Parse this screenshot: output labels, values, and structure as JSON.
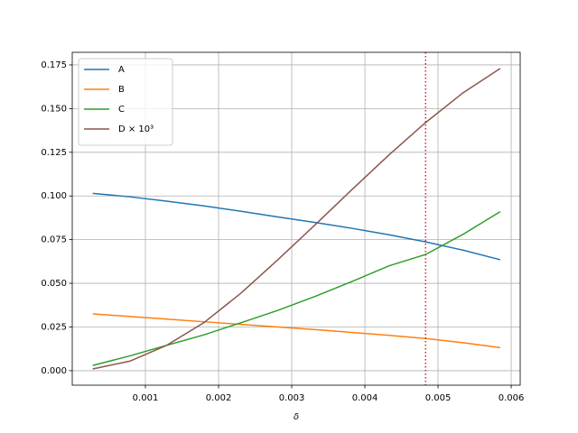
{
  "chart_data": {
    "type": "line",
    "xlabel": "δ",
    "x": [
      0.00028,
      0.00079,
      0.00129,
      0.0018,
      0.00231,
      0.00281,
      0.00332,
      0.00382,
      0.00433,
      0.00483,
      0.00534,
      0.00585
    ],
    "series": [
      {
        "name": "A",
        "color": "#1f77b4",
        "values": [
          0.1015,
          0.0995,
          0.097,
          0.0943,
          0.0912,
          0.088,
          0.0848,
          0.0815,
          0.0778,
          0.0737,
          0.069,
          0.0635
        ]
      },
      {
        "name": "B",
        "color": "#ff7f0e",
        "values": [
          0.0325,
          0.031,
          0.0295,
          0.028,
          0.0265,
          0.025,
          0.0235,
          0.0219,
          0.0202,
          0.0184,
          0.016,
          0.0132
        ]
      },
      {
        "name": "C",
        "color": "#2ca02c",
        "values": [
          0.003,
          0.0085,
          0.0145,
          0.0205,
          0.0275,
          0.0345,
          0.0425,
          0.051,
          0.06,
          0.0665,
          0.078,
          0.091
        ]
      },
      {
        "name": "D × 10³",
        "color": "#8c564b",
        "values": [
          0.001,
          0.0055,
          0.0145,
          0.0275,
          0.0445,
          0.0635,
          0.0835,
          0.1035,
          0.1235,
          0.142,
          0.159,
          0.173
        ]
      }
    ],
    "xlim": [
      0.0,
      0.006123
    ],
    "ylim": [
      -0.0083,
      0.1822
    ],
    "xticks": [
      0.001,
      0.002,
      0.003,
      0.004,
      0.005,
      0.006
    ],
    "yticks": [
      {
        "value": 0,
        "label": "0.000"
      },
      {
        "value": 0.025,
        "label": "0.025"
      },
      {
        "value": 0.05,
        "label": "0.050"
      },
      {
        "value": 0.075,
        "label": "0.075"
      },
      {
        "value": 0.1,
        "label": "0.100"
      },
      {
        "value": 0.125,
        "label": "0.125"
      },
      {
        "value": 0.15,
        "label": "0.150"
      },
      {
        "value": 0.175,
        "label": "0.175"
      }
    ],
    "grid": true,
    "legend": "upper-left",
    "vline": {
      "x": 0.00483,
      "color": "#d62728"
    }
  }
}
